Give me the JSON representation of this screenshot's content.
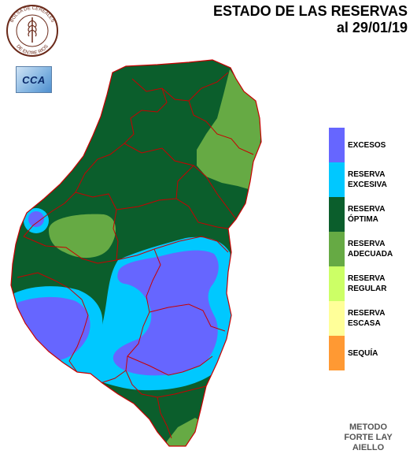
{
  "title": {
    "line1": "ESTADO DE LAS RESERVAS",
    "line2": "al 29/01/19"
  },
  "logo": {
    "text_top": "BOLSA DE CEREALES",
    "text_bottom": "DE ENTRE RIOS",
    "icon": "wheat-emblem-icon"
  },
  "badge": {
    "text": "CCA",
    "icon": "cca-cloud-icon"
  },
  "legend": {
    "items": [
      {
        "lines": [
          "EXCESOS"
        ],
        "color": "#6666ff"
      },
      {
        "lines": [
          "RESERVA",
          "EXCESIVA"
        ],
        "color": "#00c8ff"
      },
      {
        "lines": [
          "RESERVA",
          "ÓPTIMA"
        ],
        "color": "#0b5e2c"
      },
      {
        "lines": [
          "RESERVA",
          "ADECUADA"
        ],
        "color": "#66aa44"
      },
      {
        "lines": [
          "RESERVA",
          "REGULAR"
        ],
        "color": "#ccff66"
      },
      {
        "lines": [
          "RESERVA",
          "ESCASA"
        ],
        "color": "#ffff99"
      },
      {
        "lines": [
          "SEQUÍA"
        ],
        "color": "#ff9933"
      }
    ]
  },
  "method": {
    "lines": [
      "METODO",
      "FORTE LAY",
      "AIELLO"
    ]
  },
  "colors": {
    "excesos": "#6666ff",
    "excesiva": "#00c8ff",
    "optima": "#0b5e2c",
    "adecuada": "#66aa44",
    "borders": "#c80000"
  }
}
